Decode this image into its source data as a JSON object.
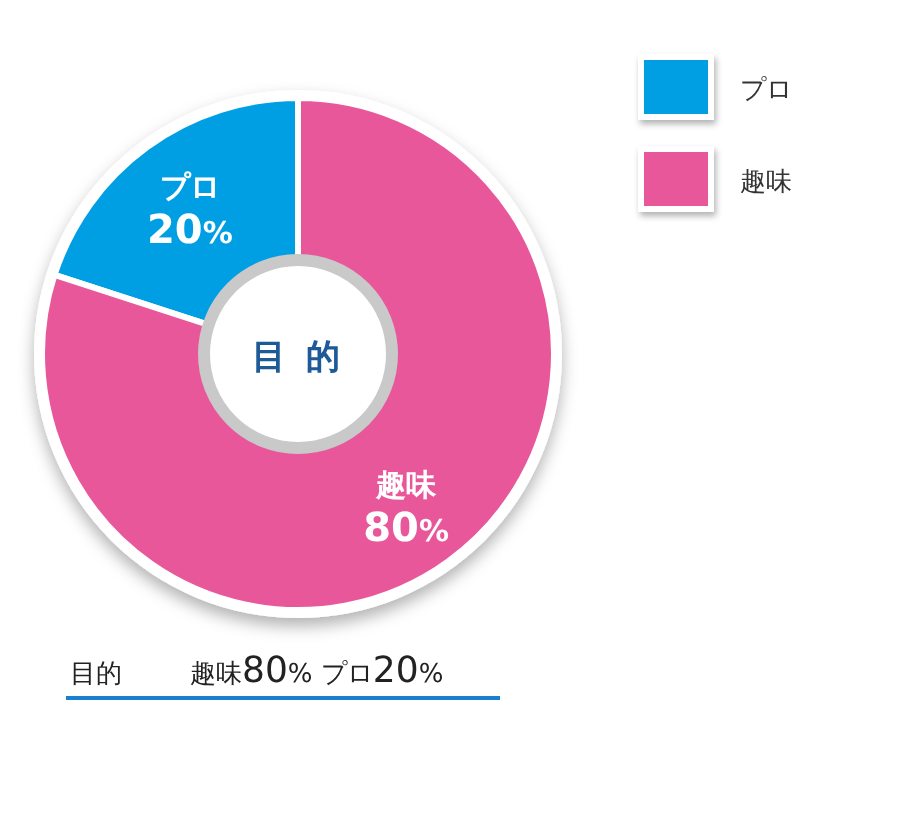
{
  "chart_data": {
    "type": "donut",
    "title": "目 的",
    "categories": [
      "プロ",
      "趣味"
    ],
    "values": [
      20,
      80
    ],
    "colors": [
      "#009fe3",
      "#e8579a"
    ],
    "value_labels": [
      "20%",
      "80%"
    ],
    "legend": "top right",
    "annotations": [
      "目的",
      "趣味80% プロ20%"
    ]
  }
}
